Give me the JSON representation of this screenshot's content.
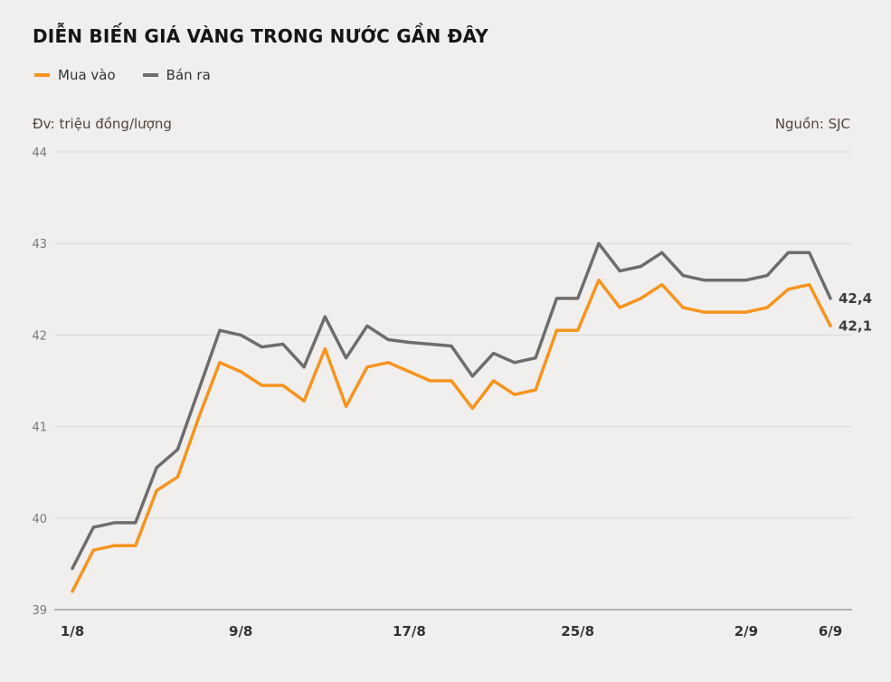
{
  "header": {
    "title": "DIỄN BIẾN GIÁ VÀNG TRONG NƯỚC GẦN ĐÂY",
    "unit_label": "Đv: triệu đồng/lượng",
    "source_label": "Nguồn: SJC"
  },
  "legend": {
    "items": [
      {
        "label": "Mua vào",
        "color": "#f7941e"
      },
      {
        "label": "Bán ra",
        "color": "#6d6d6d"
      }
    ]
  },
  "colors": {
    "background": "#f0efee",
    "buy_line": "#f7941e",
    "sell_line": "#6d6d6d",
    "gridline": "#d9d9d9",
    "axis_line": "#9b9b9b",
    "y_tick_text": "#77787b",
    "x_tick_text": "#333333",
    "end_label_text": "#3d3d3d"
  },
  "chart_data": {
    "type": "line",
    "title": "DIỄN BIẾN GIÁ VÀNG TRONG NƯỚC GẦN ĐÂY",
    "ylabel": "triệu đồng/lượng",
    "source": "SJC",
    "ylim": [
      39,
      44
    ],
    "y_ticks": [
      39,
      40,
      41,
      42,
      43,
      44
    ],
    "grid": "horizontal",
    "legend_position": "top-left",
    "x_count": 37,
    "x_tick_labels": [
      "1/8",
      "9/8",
      "17/8",
      "25/8",
      "2/9",
      "6/9"
    ],
    "x_tick_indices": [
      0,
      8,
      16,
      24,
      32,
      36
    ],
    "series": [
      {
        "name": "Bán ra",
        "color": "#6d6d6d",
        "end_label": "42,4",
        "end_value": 42.4,
        "values": [
          39.45,
          39.9,
          39.95,
          39.95,
          40.55,
          40.75,
          41.4,
          42.05,
          42.0,
          41.87,
          41.9,
          41.65,
          42.2,
          41.75,
          42.1,
          41.95,
          41.92,
          41.9,
          41.88,
          41.55,
          41.8,
          41.7,
          41.75,
          42.4,
          42.4,
          43.0,
          42.7,
          42.75,
          42.9,
          42.65,
          42.6,
          42.6,
          42.6,
          42.65,
          42.9,
          42.9,
          42.4
        ]
      },
      {
        "name": "Mua vào",
        "color": "#f7941e",
        "end_label": "42,1",
        "end_value": 42.1,
        "values": [
          39.2,
          39.65,
          39.7,
          39.7,
          40.3,
          40.45,
          41.1,
          41.7,
          41.6,
          41.45,
          41.45,
          41.28,
          41.85,
          41.22,
          41.65,
          41.7,
          41.6,
          41.5,
          41.5,
          41.2,
          41.5,
          41.35,
          41.4,
          42.05,
          42.05,
          42.6,
          42.3,
          42.4,
          42.55,
          42.3,
          42.25,
          42.25,
          42.25,
          42.3,
          42.5,
          42.55,
          42.1
        ]
      }
    ]
  }
}
